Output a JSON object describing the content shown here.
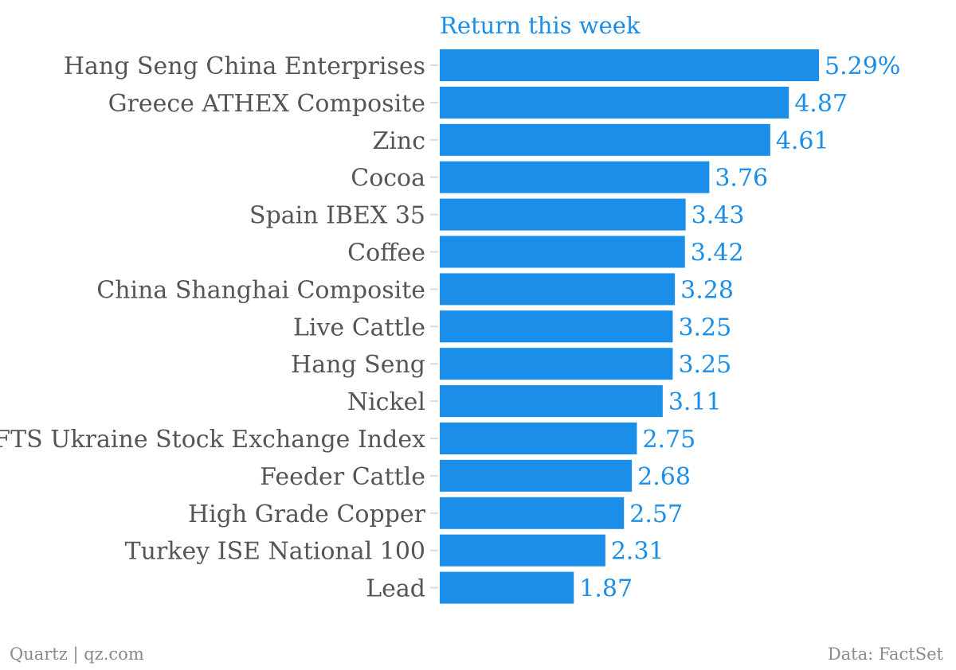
{
  "chart_data": {
    "type": "bar",
    "orientation": "horizontal",
    "categories": [
      "Hang Seng China Enterprises",
      "Greece ATHEX Composite",
      "Zinc",
      "Cocoa",
      "Spain IBEX 35",
      "Coffee",
      "China Shanghai Composite",
      "Live Cattle",
      "Hang Seng",
      "Nickel",
      "PFTS Ukraine Stock Exchange Index",
      "Feeder Cattle",
      "High Grade Copper",
      "Turkey ISE National 100",
      "Lead"
    ],
    "series": [
      {
        "name": "Return this week",
        "values": [
          5.29,
          4.87,
          4.61,
          3.76,
          3.43,
          3.42,
          3.28,
          3.25,
          3.25,
          3.11,
          2.75,
          2.68,
          2.57,
          2.31,
          1.87
        ],
        "labels": [
          "5.29%",
          "4.87",
          "4.61",
          "3.76",
          "3.43",
          "3.42",
          "3.28",
          "3.25",
          "3.25",
          "3.11",
          "2.75",
          "2.68",
          "2.57",
          "2.31",
          "1.87"
        ]
      }
    ],
    "xlim": [
      0,
      5.29
    ],
    "grid": false,
    "bar_color": "#1a8ee8",
    "label_color": "#1a8ee8",
    "category_color": "#555555"
  },
  "footer": {
    "source_left": "Quartz | qz.com",
    "source_right": "Data: FactSet"
  }
}
